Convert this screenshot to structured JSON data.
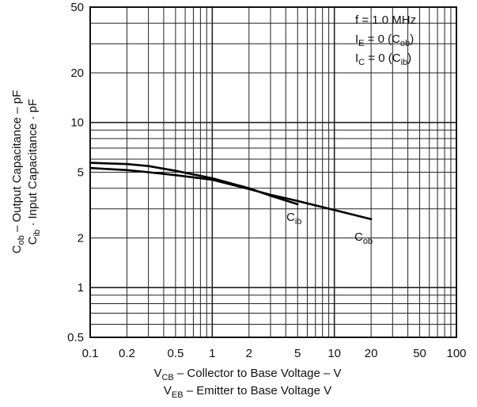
{
  "chart_data": {
    "type": "line",
    "x_scale": "log",
    "y_scale": "log",
    "xlim": [
      0.1,
      100
    ],
    "ylim": [
      0.5,
      50
    ],
    "grid": true,
    "x_ticks": [
      0.1,
      0.2,
      0.5,
      1,
      2,
      5,
      10,
      20,
      50,
      100
    ],
    "x_tick_labels": [
      "0.1",
      "0.2",
      "0.5",
      "1",
      "2",
      "5",
      "10",
      "20",
      "50",
      "100"
    ],
    "y_ticks": [
      0.5,
      1,
      2,
      5,
      10,
      20,
      50
    ],
    "y_tick_labels": [
      "0.5",
      "1",
      "2",
      "5",
      "10",
      "20",
      "50"
    ],
    "ylabel_line1": {
      "main": "C",
      "sub": "ob",
      "rest": " – Output Capacitance – pF"
    },
    "ylabel_line2": {
      "main": "C",
      "sub": "ib",
      "rest": " · Input Capacitance · pF"
    },
    "xlabel_line1": {
      "main": "V",
      "sub": "CB",
      "rest": " – Collector to Base Voltage – V"
    },
    "xlabel_line2": {
      "main": "V",
      "sub": "EB",
      "rest": " – Emitter to Base Voltage   V"
    },
    "legend_lines": [
      {
        "parts": [
          {
            "t": "f = 1.0 MHz"
          }
        ]
      },
      {
        "parts": [
          {
            "t": "I"
          },
          {
            "t": "E",
            "sub": true
          },
          {
            "t": " = 0 (C"
          },
          {
            "t": "ob",
            "sub": true
          },
          {
            "t": ")"
          }
        ]
      },
      {
        "parts": [
          {
            "t": "I"
          },
          {
            "t": "C",
            "sub": true
          },
          {
            "t": " = 0 (C"
          },
          {
            "t": "ib",
            "sub": true
          },
          {
            "t": ")"
          }
        ]
      }
    ],
    "legend_position": "top-right",
    "series": [
      {
        "name": "Cob",
        "label_main": "C",
        "label_sub": "ob",
        "x": [
          0.1,
          0.2,
          0.3,
          0.5,
          1,
          2,
          3,
          5,
          10,
          20
        ],
        "y": [
          5.3,
          5.15,
          5.0,
          4.8,
          4.5,
          3.95,
          3.65,
          3.35,
          2.95,
          2.6
        ]
      },
      {
        "name": "Cib",
        "label_main": "C",
        "label_sub": "ib",
        "x": [
          0.1,
          0.2,
          0.3,
          0.5,
          1,
          2,
          3,
          5
        ],
        "y": [
          5.7,
          5.6,
          5.45,
          5.1,
          4.6,
          4.0,
          3.6,
          3.2
        ]
      }
    ]
  }
}
